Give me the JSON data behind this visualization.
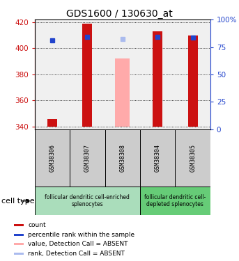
{
  "title": "GDS1600 / 130630_at",
  "samples": [
    "GSM38306",
    "GSM38307",
    "GSM38308",
    "GSM38304",
    "GSM38305"
  ],
  "ylim_left": [
    338,
    422
  ],
  "ylim_right": [
    0,
    100
  ],
  "yticks_left": [
    340,
    360,
    380,
    400,
    420
  ],
  "yticks_right": [
    0,
    25,
    50,
    75,
    100
  ],
  "bar_bottom": 340,
  "red_bars": [
    346,
    419,
    340,
    413,
    410
  ],
  "red_bar_color": "#cc1111",
  "pink_bars": [
    null,
    null,
    392,
    null,
    null
  ],
  "pink_bar_color": "#ffaaaa",
  "blue_squares": [
    406,
    409,
    null,
    409,
    408
  ],
  "blue_square_color": "#2244cc",
  "lavender_squares": [
    null,
    null,
    407,
    null,
    null
  ],
  "lavender_square_color": "#aabbee",
  "cell_type_groups": [
    {
      "samples": [
        0,
        1,
        2
      ],
      "label": "follicular dendritic cell-enriched\nsplenocytes",
      "color": "#aaddbb"
    },
    {
      "samples": [
        3,
        4
      ],
      "label": "follicular dendritic cell-\ndepleted splenocytes",
      "color": "#66cc77"
    }
  ],
  "legend_items": [
    {
      "color": "#cc1111",
      "label": "count"
    },
    {
      "color": "#2244cc",
      "label": "percentile rank within the sample"
    },
    {
      "color": "#ffaaaa",
      "label": "value, Detection Call = ABSENT"
    },
    {
      "color": "#aabbee",
      "label": "rank, Detection Call = ABSENT"
    }
  ],
  "left_tick_color": "#cc1111",
  "right_tick_color": "#2244cc",
  "bar_width": 0.28,
  "pink_bar_width": 0.42,
  "title_fontsize": 10,
  "sample_fontsize": 6,
  "legend_fontsize": 6.5,
  "celltype_fontsize": 5.5,
  "celltype_label_fontsize": 8,
  "plot_bg": "#f0f0f0",
  "sample_box_color": "#cccccc"
}
